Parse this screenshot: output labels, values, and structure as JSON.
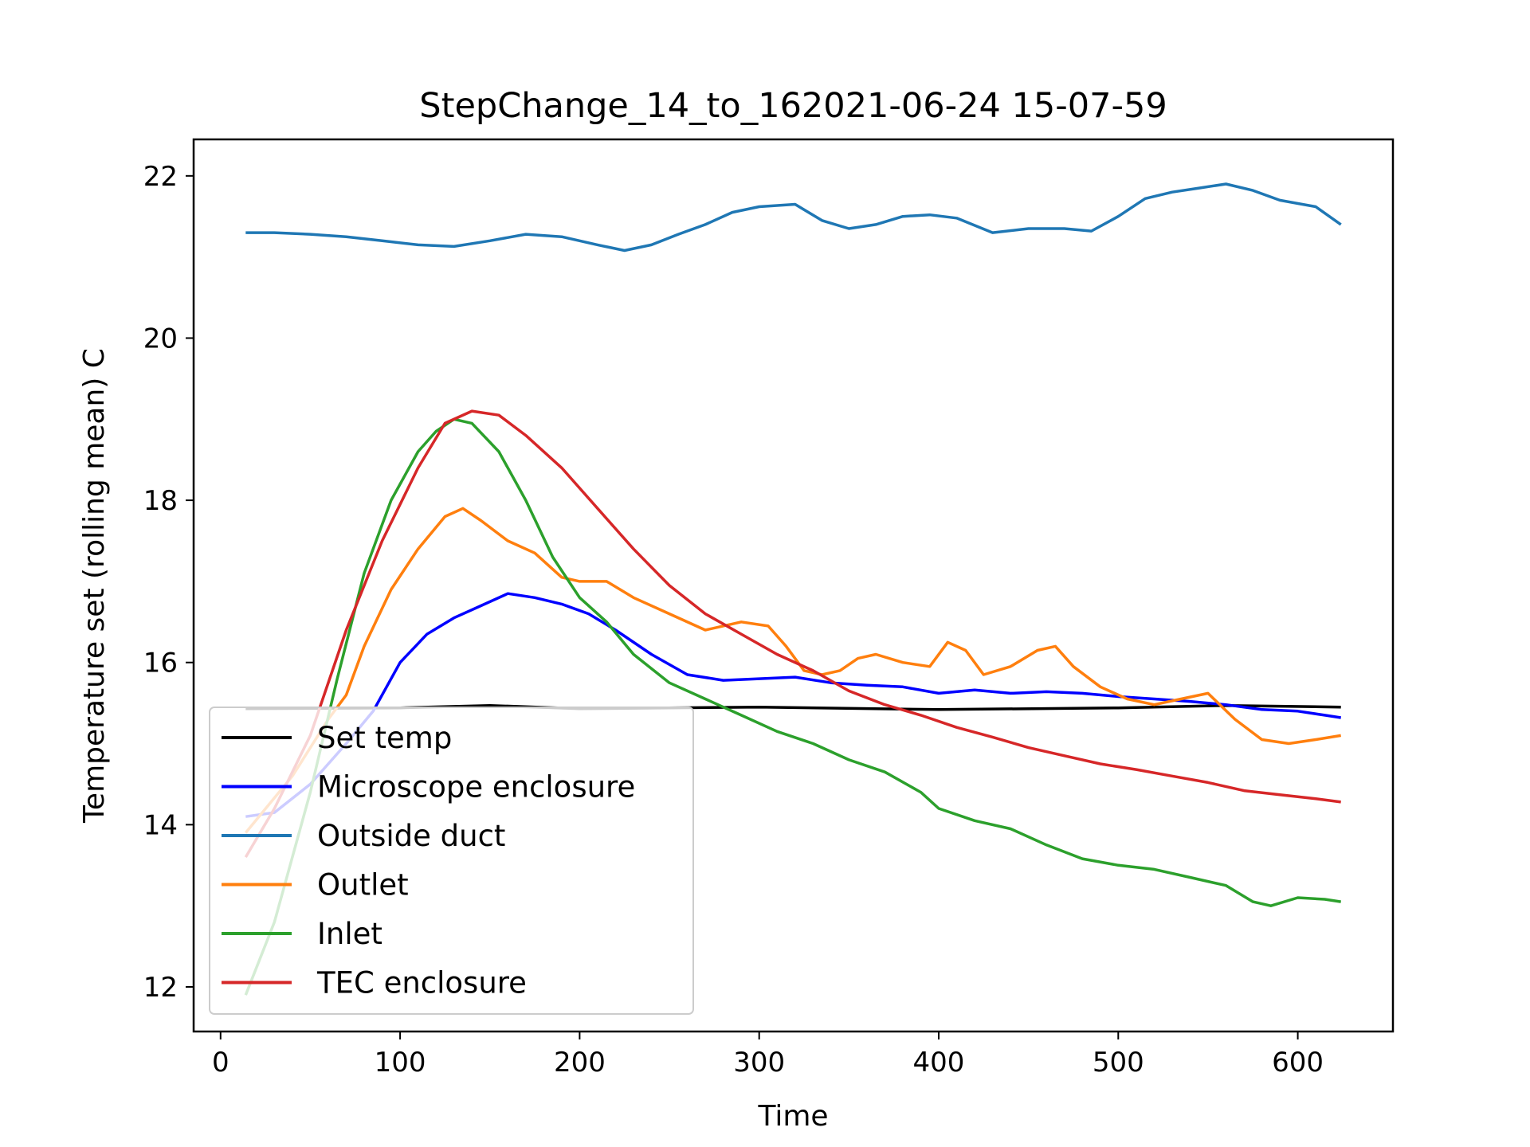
{
  "chart_data": {
    "type": "line",
    "title": "StepChange_14_to_162021-06-24 15-07-59",
    "xlabel": "Time",
    "ylabel": "Temperature set (rolling mean) C",
    "xlim": [
      -15,
      653
    ],
    "ylim": [
      11.45,
      22.45
    ],
    "xticks": [
      0,
      100,
      200,
      300,
      400,
      500,
      600
    ],
    "yticks": [
      12,
      14,
      16,
      18,
      20,
      22
    ],
    "grid": false,
    "legend_position": "lower-left",
    "series": [
      {
        "name": "Set temp",
        "color": "#000000",
        "x": [
          14,
          100,
          150,
          200,
          300,
          400,
          500,
          560,
          624
        ],
        "y": [
          15.43,
          15.44,
          15.47,
          15.43,
          15.45,
          15.42,
          15.44,
          15.47,
          15.45
        ]
      },
      {
        "name": "Microscope enclosure",
        "color": "#0000ff",
        "x": [
          14,
          30,
          50,
          70,
          85,
          100,
          115,
          130,
          145,
          160,
          175,
          190,
          205,
          220,
          240,
          260,
          280,
          300,
          320,
          340,
          360,
          380,
          400,
          420,
          440,
          460,
          480,
          500,
          520,
          540,
          560,
          580,
          600,
          615,
          624
        ],
        "y": [
          14.1,
          14.15,
          14.5,
          15.0,
          15.4,
          16.0,
          16.35,
          16.55,
          16.7,
          16.85,
          16.8,
          16.72,
          16.6,
          16.4,
          16.1,
          15.85,
          15.78,
          15.8,
          15.82,
          15.75,
          15.72,
          15.7,
          15.62,
          15.66,
          15.62,
          15.64,
          15.62,
          15.58,
          15.55,
          15.52,
          15.48,
          15.42,
          15.4,
          15.35,
          15.32
        ]
      },
      {
        "name": "Outside duct",
        "color": "#1f77b4",
        "x": [
          14,
          30,
          50,
          70,
          90,
          110,
          130,
          150,
          170,
          190,
          210,
          225,
          240,
          255,
          270,
          285,
          300,
          320,
          335,
          350,
          365,
          380,
          395,
          410,
          430,
          450,
          470,
          485,
          500,
          515,
          530,
          545,
          560,
          575,
          590,
          610,
          624
        ],
        "y": [
          21.3,
          21.3,
          21.28,
          21.25,
          21.2,
          21.15,
          21.13,
          21.2,
          21.28,
          21.25,
          21.15,
          21.08,
          21.15,
          21.28,
          21.4,
          21.55,
          21.62,
          21.65,
          21.45,
          21.35,
          21.4,
          21.5,
          21.52,
          21.48,
          21.3,
          21.35,
          21.35,
          21.32,
          21.5,
          21.72,
          21.8,
          21.85,
          21.9,
          21.82,
          21.7,
          21.62,
          21.4
        ]
      },
      {
        "name": "Outlet",
        "color": "#ff7f0e",
        "x": [
          14,
          40,
          60,
          70,
          80,
          95,
          110,
          125,
          135,
          145,
          160,
          175,
          190,
          200,
          215,
          230,
          250,
          270,
          290,
          305,
          315,
          325,
          335,
          345,
          355,
          365,
          380,
          395,
          405,
          415,
          425,
          440,
          455,
          465,
          475,
          490,
          505,
          520,
          535,
          550,
          565,
          580,
          595,
          610,
          624
        ],
        "y": [
          13.9,
          14.6,
          15.3,
          15.6,
          16.2,
          16.9,
          17.4,
          17.8,
          17.9,
          17.75,
          17.5,
          17.35,
          17.05,
          17.0,
          17.0,
          16.8,
          16.6,
          16.4,
          16.5,
          16.45,
          16.2,
          15.9,
          15.85,
          15.9,
          16.05,
          16.1,
          16.0,
          15.95,
          16.25,
          16.15,
          15.85,
          15.95,
          16.15,
          16.2,
          15.95,
          15.7,
          15.55,
          15.48,
          15.55,
          15.62,
          15.3,
          15.05,
          15.0,
          15.05,
          15.1
        ]
      },
      {
        "name": "Inlet",
        "color": "#2ca02c",
        "x": [
          14,
          30,
          50,
          65,
          80,
          95,
          110,
          120,
          130,
          140,
          155,
          170,
          185,
          200,
          215,
          230,
          250,
          270,
          290,
          310,
          330,
          350,
          370,
          390,
          400,
          420,
          440,
          460,
          480,
          500,
          520,
          540,
          560,
          575,
          585,
          600,
          615,
          624
        ],
        "y": [
          11.9,
          12.8,
          14.4,
          15.8,
          17.1,
          18.0,
          18.6,
          18.85,
          19.0,
          18.95,
          18.6,
          18.0,
          17.3,
          16.8,
          16.5,
          16.1,
          15.75,
          15.55,
          15.35,
          15.15,
          15.0,
          14.8,
          14.65,
          14.4,
          14.2,
          14.05,
          13.95,
          13.75,
          13.58,
          13.5,
          13.45,
          13.35,
          13.25,
          13.05,
          13.0,
          13.1,
          13.08,
          13.05
        ]
      },
      {
        "name": "TEC enclosure",
        "color": "#d62728",
        "x": [
          14,
          30,
          50,
          70,
          90,
          110,
          125,
          140,
          155,
          170,
          190,
          210,
          230,
          250,
          270,
          290,
          310,
          330,
          350,
          370,
          390,
          410,
          430,
          450,
          470,
          490,
          510,
          530,
          550,
          570,
          590,
          610,
          624
        ],
        "y": [
          13.6,
          14.2,
          15.1,
          16.4,
          17.5,
          18.4,
          18.95,
          19.1,
          19.05,
          18.8,
          18.4,
          17.9,
          17.4,
          16.95,
          16.6,
          16.35,
          16.1,
          15.9,
          15.65,
          15.48,
          15.35,
          15.2,
          15.08,
          14.95,
          14.85,
          14.75,
          14.68,
          14.6,
          14.52,
          14.42,
          14.37,
          14.32,
          14.28
        ]
      }
    ]
  }
}
